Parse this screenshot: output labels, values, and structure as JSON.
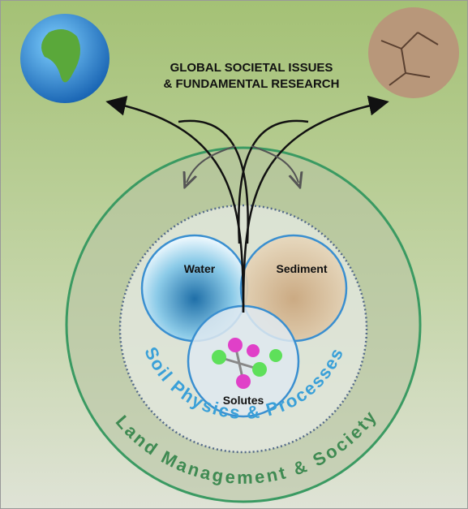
{
  "header": {
    "lines": [
      "GLOBAL SOCIETAL ISSUES",
      "& FUNDAMENTAL RESEARCH"
    ]
  },
  "nodes": [
    {
      "label": "Water"
    },
    {
      "label": "Sediment"
    },
    {
      "label": "Solutes"
    }
  ],
  "rings": [
    {
      "label": "Soil Physics & Processes"
    },
    {
      "label": "Land Management & Society"
    }
  ]
}
